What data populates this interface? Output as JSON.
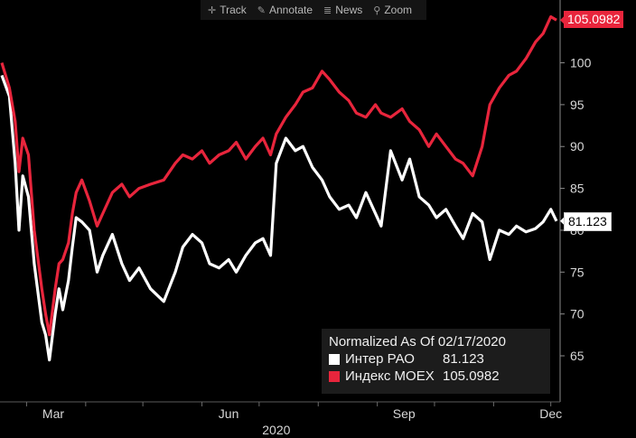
{
  "toolbar": {
    "track": "Track",
    "annotate": "Annotate",
    "news": "News",
    "zoom": "Zoom"
  },
  "chart_data": {
    "type": "line",
    "title": "",
    "xlabel": "2020",
    "ylabel": "",
    "x_ticks": [
      "Mar",
      "Jun",
      "Sep",
      "Dec"
    ],
    "y_ticks": [
      65,
      70,
      75,
      80,
      85,
      90,
      95,
      100
    ],
    "ylim": [
      59.5,
      107.5
    ],
    "xlim": [
      "2020-02-17",
      "2020-12-04"
    ],
    "y_axis_position": "right",
    "grid": false,
    "legend_position": "bottom-right",
    "x": [
      "2020-02-17",
      "2020-02-21",
      "2020-02-24",
      "2020-02-26",
      "2020-02-28",
      "2020-03-02",
      "2020-03-05",
      "2020-03-09",
      "2020-03-11",
      "2020-03-13",
      "2020-03-16",
      "2020-03-18",
      "2020-03-20",
      "2020-03-23",
      "2020-03-25",
      "2020-03-27",
      "2020-03-30",
      "2020-04-03",
      "2020-04-07",
      "2020-04-10",
      "2020-04-15",
      "2020-04-20",
      "2020-04-24",
      "2020-04-29",
      "2020-05-05",
      "2020-05-12",
      "2020-05-18",
      "2020-05-22",
      "2020-05-27",
      "2020-06-01",
      "2020-06-05",
      "2020-06-10",
      "2020-06-15",
      "2020-06-19",
      "2020-06-24",
      "2020-06-29",
      "2020-07-03",
      "2020-07-07",
      "2020-07-10",
      "2020-07-15",
      "2020-07-20",
      "2020-07-24",
      "2020-07-29",
      "2020-08-03",
      "2020-08-07",
      "2020-08-12",
      "2020-08-17",
      "2020-08-21",
      "2020-08-26",
      "2020-08-31",
      "2020-09-03",
      "2020-09-08",
      "2020-09-14",
      "2020-09-18",
      "2020-09-23",
      "2020-09-28",
      "2020-10-02",
      "2020-10-07",
      "2020-10-12",
      "2020-10-16",
      "2020-10-21",
      "2020-10-26",
      "2020-10-30",
      "2020-11-04",
      "2020-11-09",
      "2020-11-13",
      "2020-11-18",
      "2020-11-23",
      "2020-11-27",
      "2020-12-01",
      "2020-12-04"
    ],
    "series": [
      {
        "name": "Интер РАО",
        "color": "#ffffff",
        "last_label": "81.123",
        "values": [
          98.5,
          96.0,
          88.0,
          80.0,
          86.5,
          84.0,
          76.0,
          69.0,
          67.5,
          64.5,
          70.0,
          73.0,
          70.5,
          74.0,
          78.0,
          81.5,
          81.0,
          80.0,
          75.0,
          77.0,
          79.5,
          76.0,
          74.0,
          75.5,
          73.0,
          71.5,
          75.0,
          78.0,
          79.5,
          78.5,
          76.0,
          75.5,
          76.5,
          75.0,
          77.0,
          78.5,
          79.0,
          77.0,
          88.0,
          91.0,
          89.5,
          90.0,
          87.5,
          86.0,
          84.0,
          82.5,
          83.0,
          81.5,
          84.5,
          82.0,
          80.5,
          89.5,
          86.0,
          88.5,
          84.0,
          83.0,
          81.5,
          82.5,
          80.5,
          79.0,
          82.0,
          81.0,
          76.5,
          80.0,
          79.5,
          80.5,
          79.8,
          80.2,
          81.0,
          82.5,
          81.1
        ]
      },
      {
        "name": "Индекс MOEX",
        "color": "#e8253c",
        "last_label": "105.0982",
        "values": [
          100.0,
          97.0,
          93.0,
          87.0,
          91.0,
          89.0,
          80.0,
          73.0,
          70.0,
          67.5,
          73.0,
          76.0,
          76.5,
          78.5,
          82.0,
          84.5,
          86.0,
          83.5,
          80.5,
          82.0,
          84.5,
          85.5,
          84.0,
          85.0,
          85.5,
          86.0,
          88.0,
          89.0,
          88.5,
          89.5,
          88.0,
          89.0,
          89.5,
          90.5,
          88.5,
          90.0,
          91.0,
          89.0,
          91.5,
          93.5,
          95.0,
          96.5,
          97.0,
          99.0,
          98.0,
          96.5,
          95.5,
          94.0,
          93.5,
          95.0,
          94.0,
          93.5,
          94.5,
          93.0,
          92.0,
          90.0,
          91.5,
          90.0,
          88.5,
          88.0,
          86.5,
          90.0,
          95.0,
          97.0,
          98.5,
          99.0,
          100.5,
          102.5,
          103.5,
          105.5,
          105.1
        ]
      }
    ]
  },
  "legend": {
    "title": "Normalized As Of 02/17/2020",
    "items": [
      {
        "name": "Интер РАО",
        "value": "81.123",
        "color": "#ffffff"
      },
      {
        "name": "Индекс MOEX",
        "value": "105.0982",
        "color": "#e8253c"
      }
    ]
  }
}
